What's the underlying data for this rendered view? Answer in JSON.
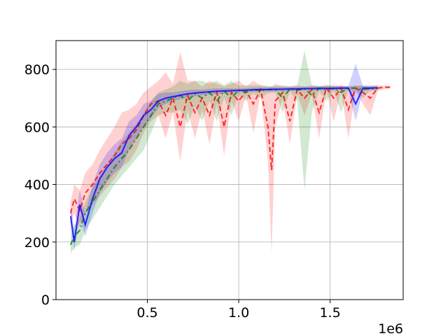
{
  "chart_data": {
    "type": "line",
    "title": "",
    "xlabel": "",
    "ylabel": "",
    "x_offset_label": "1e6",
    "xlim": [
      0.0,
      1.9
    ],
    "ylim": [
      0,
      900
    ],
    "x_ticks": [
      0.5,
      1.0,
      1.5
    ],
    "x_tick_labels": [
      "0.5",
      "1.0",
      "1.5"
    ],
    "y_ticks": [
      0,
      200,
      400,
      600,
      800
    ],
    "y_tick_labels": [
      "0",
      "200",
      "400",
      "600",
      "800"
    ],
    "grid": true,
    "legend": "none",
    "series": [
      {
        "color": "#ff0000",
        "dash": "dashed",
        "x": [
          0.08,
          0.1,
          0.13,
          0.16,
          0.2,
          0.24,
          0.28,
          0.32,
          0.36,
          0.4,
          0.44,
          0.48,
          0.52,
          0.56,
          0.6,
          0.64,
          0.68,
          0.72,
          0.76,
          0.8,
          0.84,
          0.88,
          0.92,
          0.96,
          1.0,
          1.04,
          1.08,
          1.12,
          1.16,
          1.18,
          1.2,
          1.24,
          1.28,
          1.32,
          1.36,
          1.4,
          1.44,
          1.48,
          1.52,
          1.56,
          1.6,
          1.64,
          1.68,
          1.72,
          1.76,
          1.8,
          1.83
        ],
        "y": [
          300,
          350,
          310,
          370,
          400,
          440,
          470,
          500,
          540,
          560,
          590,
          640,
          680,
          690,
          640,
          700,
          600,
          710,
          650,
          700,
          640,
          720,
          600,
          720,
          690,
          725,
          680,
          730,
          600,
          450,
          690,
          720,
          620,
          730,
          700,
          730,
          650,
          735,
          700,
          735,
          660,
          735,
          720,
          700,
          735,
          738,
          738
        ],
        "lower": [
          260,
          300,
          250,
          300,
          330,
          360,
          390,
          420,
          460,
          480,
          520,
          580,
          620,
          640,
          560,
          650,
          480,
          660,
          560,
          660,
          540,
          680,
          500,
          690,
          620,
          710,
          580,
          715,
          480,
          160,
          600,
          700,
          540,
          715,
          640,
          715,
          560,
          725,
          620,
          725,
          560,
          725,
          680,
          640,
          725,
          732,
          733
        ],
        "upper": [
          340,
          400,
          380,
          440,
          470,
          520,
          560,
          600,
          650,
          660,
          680,
          720,
          740,
          760,
          790,
          750,
          860,
          760,
          760,
          740,
          760,
          750,
          740,
          750,
          760,
          740,
          760,
          745,
          740,
          740,
          750,
          740,
          740,
          745,
          740,
          745,
          740,
          745,
          745,
          745,
          740,
          745,
          745,
          745,
          745,
          743,
          743
        ]
      },
      {
        "color": "#008000",
        "dash": "dashdot",
        "x": [
          0.08,
          0.1,
          0.13,
          0.16,
          0.2,
          0.24,
          0.28,
          0.32,
          0.36,
          0.4,
          0.44,
          0.48,
          0.52,
          0.56,
          0.6,
          0.64,
          0.68,
          0.72,
          0.76,
          0.8,
          0.84,
          0.88,
          0.92,
          0.96,
          1.0,
          1.04,
          1.08,
          1.12,
          1.16,
          1.2,
          1.24,
          1.28,
          1.32,
          1.36,
          1.4,
          1.44,
          1.48,
          1.52,
          1.56,
          1.6,
          1.64,
          1.68,
          1.72,
          1.76
        ],
        "y": [
          190,
          220,
          240,
          300,
          340,
          380,
          420,
          460,
          490,
          520,
          560,
          600,
          640,
          680,
          690,
          700,
          710,
          690,
          715,
          700,
          720,
          690,
          725,
          700,
          728,
          720,
          730,
          725,
          730,
          731,
          700,
          732,
          728,
          733,
          710,
          734,
          730,
          734,
          720,
          735,
          735,
          730,
          733,
          733
        ],
        "lower": [
          160,
          180,
          190,
          240,
          280,
          320,
          360,
          400,
          430,
          460,
          490,
          520,
          580,
          640,
          650,
          650,
          660,
          610,
          670,
          620,
          690,
          620,
          700,
          640,
          712,
          690,
          716,
          700,
          718,
          720,
          650,
          722,
          690,
          380,
          650,
          724,
          690,
          726,
          650,
          727,
          726,
          700,
          726,
          726
        ],
        "upper": [
          220,
          260,
          280,
          340,
          390,
          430,
          470,
          510,
          550,
          580,
          610,
          650,
          690,
          720,
          730,
          740,
          760,
          750,
          760,
          760,
          750,
          760,
          745,
          760,
          743,
          745,
          744,
          745,
          742,
          742,
          745,
          742,
          743,
          865,
          745,
          743,
          745,
          742,
          742,
          742,
          742,
          742,
          740,
          740
        ]
      },
      {
        "color": "#0000ff",
        "dash": "solid",
        "x": [
          0.08,
          0.1,
          0.13,
          0.16,
          0.2,
          0.24,
          0.28,
          0.32,
          0.36,
          0.4,
          0.44,
          0.48,
          0.52,
          0.56,
          0.6,
          0.64,
          0.68,
          0.72,
          0.76,
          0.8,
          0.84,
          0.88,
          0.92,
          0.96,
          1.0,
          1.04,
          1.08,
          1.12,
          1.16,
          1.2,
          1.24,
          1.28,
          1.32,
          1.36,
          1.4,
          1.44,
          1.48,
          1.52,
          1.56,
          1.6,
          1.64,
          1.68,
          1.72,
          1.76
        ],
        "y": [
          290,
          200,
          330,
          260,
          350,
          420,
          460,
          490,
          510,
          570,
          600,
          640,
          660,
          690,
          700,
          705,
          710,
          715,
          718,
          720,
          722,
          724,
          725,
          726,
          727,
          728,
          729,
          730,
          730,
          731,
          731,
          732,
          732,
          733,
          733,
          734,
          734,
          734,
          735,
          735,
          680,
          735,
          735,
          736
        ],
        "lower": [
          250,
          170,
          280,
          220,
          300,
          370,
          410,
          440,
          460,
          520,
          560,
          600,
          630,
          665,
          680,
          690,
          696,
          702,
          706,
          710,
          712,
          714,
          716,
          718,
          720,
          721,
          722,
          723,
          723,
          724,
          724,
          725,
          725,
          726,
          726,
          727,
          727,
          727,
          728,
          728,
          620,
          728,
          728,
          729
        ],
        "upper": [
          330,
          240,
          380,
          300,
          400,
          470,
          510,
          540,
          560,
          620,
          640,
          680,
          690,
          715,
          720,
          720,
          724,
          728,
          730,
          730,
          732,
          734,
          734,
          734,
          734,
          735,
          736,
          737,
          737,
          738,
          738,
          739,
          739,
          740,
          740,
          741,
          741,
          741,
          742,
          742,
          820,
          742,
          742,
          743
        ]
      }
    ]
  }
}
